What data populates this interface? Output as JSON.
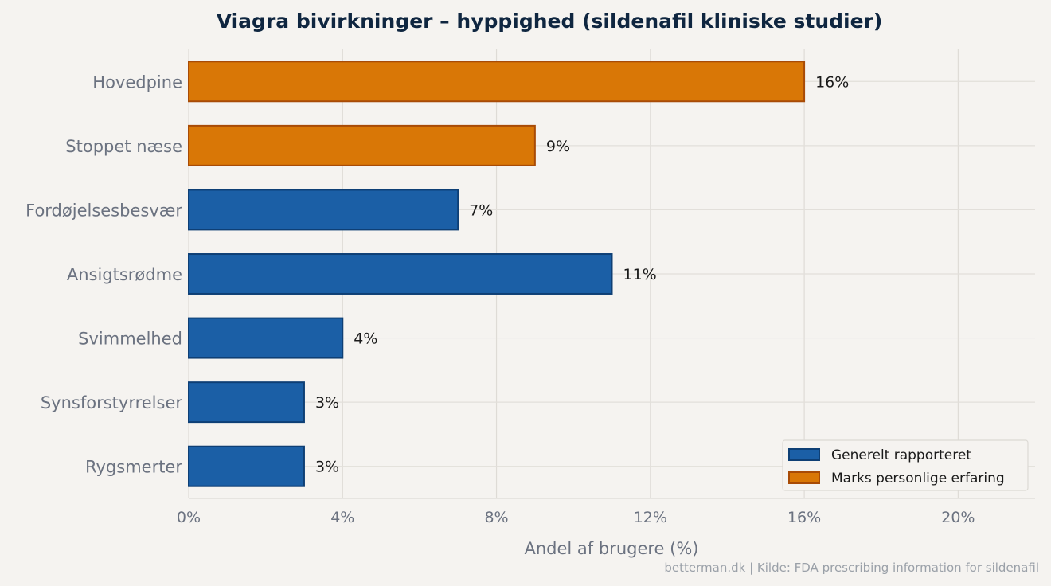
{
  "chart_data": {
    "type": "bar",
    "orientation": "horizontal",
    "title": "Viagra bivirkninger – hyppighed (sildenafil kliniske studier)",
    "xlabel": "Andel af brugere (%)",
    "ylabel": "",
    "categories": [
      "Hovedpine",
      "Stoppet næse",
      "Fordøjelsesbesvær",
      "Ansigtsrødme",
      "Svimmelhed",
      "Synsforstyrrelser",
      "Rygsmerter"
    ],
    "values": [
      16,
      9,
      7,
      11,
      4,
      3,
      3
    ],
    "value_labels": [
      "16%",
      "9%",
      "7%",
      "11%",
      "4%",
      "3%",
      "3%"
    ],
    "series_assignment": [
      "personal",
      "personal",
      "general",
      "general",
      "general",
      "general",
      "general"
    ],
    "series": [
      {
        "key": "general",
        "name": "Generelt rapporteret",
        "color": "#1b5fa6",
        "edge": "#0e3f75"
      },
      {
        "key": "personal",
        "name": "Marks personlige erfaring",
        "color": "#d97706",
        "edge": "#a84b06"
      }
    ],
    "xlim": [
      0,
      22
    ],
    "xticks": [
      0,
      4,
      8,
      12,
      16,
      20
    ],
    "xtick_labels": [
      "0%",
      "4%",
      "8%",
      "12%",
      "16%",
      "20%"
    ],
    "grid": true,
    "legend_position": "bottom-right",
    "source": "betterman.dk | Kilde: FDA prescribing information for sildenafil"
  }
}
